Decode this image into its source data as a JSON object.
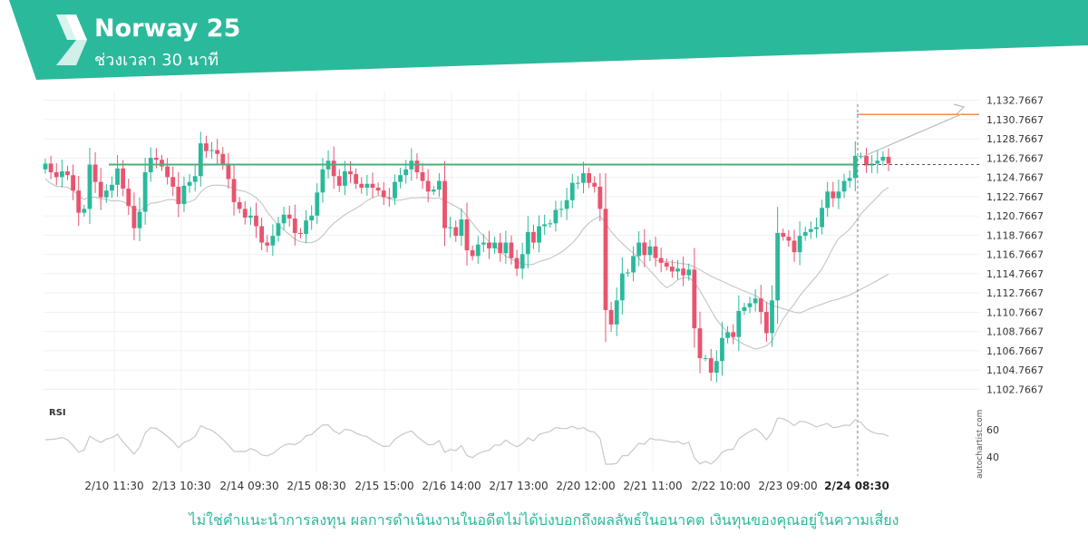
{
  "header": {
    "title": "Norway 25",
    "subtitle": "ช่วงเวลา 30 นาที",
    "color": "#2bb99c"
  },
  "disclaimer": "ไม่ใช่คำแนะนำการลงทุน ผลการดำเนินงานในอดีตไม่ได้บ่งบอกถึงผลลัพธ์ในอนาคต เงินทุนของคุณอยู่ในความเสี่ยง",
  "watermark": "autochartist.com",
  "chart_data": {
    "type": "candlestick",
    "price_ticks": [
      "1,132.7667",
      "1,130.7667",
      "1,128.7667",
      "1,126.7667",
      "1,124.7667",
      "1,122.7667",
      "1,120.7667",
      "1,118.7667",
      "1,116.7667",
      "1,114.7667",
      "1,112.7667",
      "1,110.7667",
      "1,108.7667",
      "1,106.7667",
      "1,104.7667",
      "1,102.7667"
    ],
    "y_range": [
      1101.77,
      1133.77
    ],
    "x_ticks": [
      "2/10 11:30",
      "2/13 10:30",
      "2/14 09:30",
      "2/15 08:30",
      "2/15 15:00",
      "2/16 14:00",
      "2/17 13:00",
      "2/20 12:00",
      "2/21 11:00",
      "2/22 10:00",
      "2/23 09:00",
      "2/24 08:30"
    ],
    "highlight_tick": "2/24 08:30",
    "resistance_level": 1126.1,
    "target_level": 1131.3,
    "last_price": 1126.1,
    "up_color": "#2bb99c",
    "down_color": "#e8546e",
    "candle_closes": [
      1126.2,
      1125.3,
      1124.8,
      1125.4,
      1125.0,
      1123.4,
      1121.1,
      1121.5,
      1126.1,
      1124.3,
      1122.7,
      1123.4,
      1124.0,
      1125.7,
      1123.6,
      1121.8,
      1119.5,
      1121.2,
      1125.3,
      1126.8,
      1126.6,
      1125.9,
      1124.8,
      1123.8,
      1122.0,
      1123.9,
      1124.3,
      1124.9,
      1128.3,
      1127.5,
      1127.6,
      1127.2,
      1126.2,
      1124.6,
      1122.2,
      1121.5,
      1120.6,
      1120.8,
      1119.7,
      1118.0,
      1117.7,
      1118.7,
      1120.0,
      1120.9,
      1120.5,
      1119.0,
      1118.9,
      1120.3,
      1120.8,
      1123.2,
      1125.6,
      1126.5,
      1124.9,
      1123.9,
      1125.4,
      1125.1,
      1124.1,
      1123.7,
      1124.1,
      1123.7,
      1123.4,
      1122.7,
      1122.6,
      1124.3,
      1125.0,
      1125.6,
      1126.5,
      1125.3,
      1124.4,
      1123.3,
      1123.5,
      1124.4,
      1119.5,
      1119.6,
      1118.7,
      1120.4,
      1117.2,
      1116.6,
      1117.8,
      1118.0,
      1117.4,
      1118.0,
      1116.9,
      1118.0,
      1116.4,
      1115.3,
      1116.8,
      1119.1,
      1118.0,
      1119.7,
      1119.9,
      1120.0,
      1121.4,
      1121.5,
      1122.4,
      1124.2,
      1124.2,
      1125.2,
      1124.2,
      1123.8,
      1121.5,
      1111.0,
      1109.5,
      1112.0,
      1114.8,
      1114.9,
      1116.6,
      1118.0,
      1116.7,
      1117.6,
      1116.4,
      1115.9,
      1115.5,
      1115.0,
      1115.3,
      1114.6,
      1115.2,
      1109.1,
      1106.0,
      1106.0,
      1104.5,
      1105.7,
      1108.1,
      1108.7,
      1108.2,
      1110.9,
      1111.3,
      1111.7,
      1112.2,
      1110.8,
      1108.6,
      1112.0,
      1119.0,
      1118.6,
      1118.2,
      1117.0,
      1118.7,
      1119.1,
      1119.4,
      1119.6,
      1121.6,
      1123.3,
      1122.6,
      1123.3,
      1124.4,
      1124.7,
      1127.0,
      1127.0,
      1126.0,
      1126.2,
      1126.5,
      1126.9,
      1126.2
    ]
  }
}
